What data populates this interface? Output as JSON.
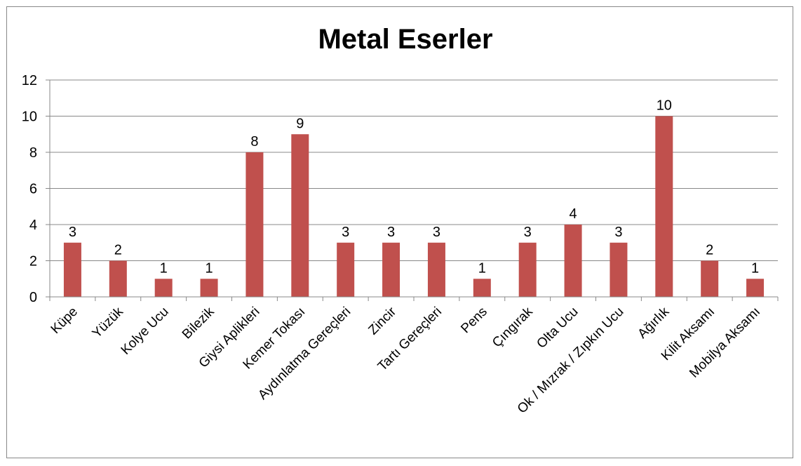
{
  "chart_data": {
    "type": "bar",
    "title": "Metal Eserler",
    "xlabel": "",
    "ylabel": "",
    "ylim": [
      0,
      12
    ],
    "yticks": [
      0,
      2,
      4,
      6,
      8,
      10,
      12
    ],
    "grid": true,
    "legend": "none",
    "bar_color": "#C0504D",
    "categories": [
      "Küpe",
      "Yüzük",
      "Kolye Ucu",
      "Bilezik",
      "Giysi Aplikleri",
      "Kemer Tokası",
      "Aydınlatma Gereçleri",
      "Zincir",
      "Tartı Gereçleri",
      "Pens",
      "Çıngırak",
      "Olta Ucu",
      "Ok / Mızrak / Zıpkın Ucu",
      "Ağırlık",
      "Kilit Aksamı",
      "Mobilya Aksamı"
    ],
    "values": [
      3,
      2,
      1,
      1,
      8,
      9,
      3,
      3,
      3,
      1,
      3,
      4,
      3,
      10,
      2,
      1
    ]
  }
}
